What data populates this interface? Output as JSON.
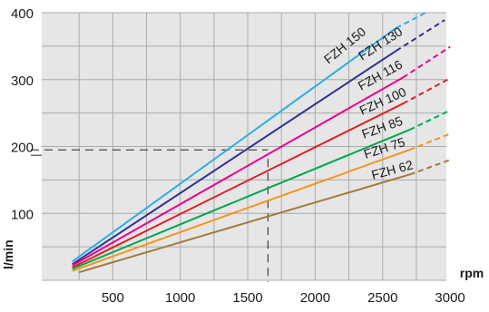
{
  "chart_data": {
    "type": "line",
    "xlabel": "rpm",
    "ylabel": "l/min",
    "xlim": [
      0,
      3000
    ],
    "ylim": [
      0,
      400
    ],
    "x_ticks": [
      {
        "value": 500,
        "label": "500"
      },
      {
        "value": 1000,
        "label": "1000"
      },
      {
        "value": 1500,
        "label": "1500"
      },
      {
        "value": 2000,
        "label": "2000"
      },
      {
        "value": 2500,
        "label": "2500"
      },
      {
        "value": 3000,
        "label": "3000"
      }
    ],
    "y_ticks": [
      {
        "value": 100,
        "label": "100"
      },
      {
        "value": 200,
        "label": "200"
      },
      {
        "value": 300,
        "label": "300"
      },
      {
        "value": 400,
        "label": "400"
      }
    ],
    "grid": true,
    "series": [
      {
        "name": "FZH 150",
        "color": "#29aee6",
        "start": [
          200,
          28
        ],
        "solid_end": [
          2600,
          377
        ],
        "dashed_end": [
          2820,
          400
        ]
      },
      {
        "name": "FZH 130",
        "color": "#2e3192",
        "start": [
          200,
          24
        ],
        "solid_end": [
          2600,
          343
        ],
        "dashed_end": [
          2960,
          389
        ]
      },
      {
        "name": "FZH 116",
        "color": "#ec008c",
        "start": [
          200,
          22
        ],
        "solid_end": [
          2650,
          303
        ],
        "dashed_end": [
          3000,
          349
        ]
      },
      {
        "name": "FZH 100",
        "color": "#e31e24",
        "start": [
          200,
          19
        ],
        "solid_end": [
          2650,
          264
        ],
        "dashed_end": [
          3000,
          302
        ]
      },
      {
        "name": "FZH 85",
        "color": "#00a651",
        "start": [
          200,
          17
        ],
        "solid_end": [
          2700,
          225
        ],
        "dashed_end": [
          3000,
          254
        ]
      },
      {
        "name": "FZH 75",
        "color": "#f7941d",
        "start": [
          200,
          14
        ],
        "solid_end": [
          2700,
          195
        ],
        "dashed_end": [
          3000,
          219
        ]
      },
      {
        "name": "FZH 62",
        "color": "#a17a3c",
        "start": [
          250,
          12
        ],
        "solid_end": [
          2700,
          158
        ],
        "dashed_end": [
          3000,
          180
        ]
      }
    ],
    "reference": {
      "x": 1650,
      "y": 195
    },
    "background_color": "#e6e6e6",
    "grid_color": "#aaaaaa"
  }
}
